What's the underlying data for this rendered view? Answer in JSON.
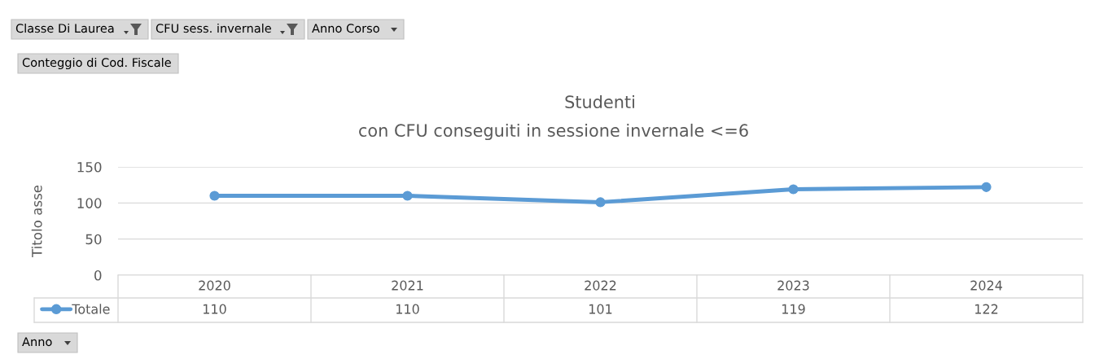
{
  "chart_data": {
    "type": "line",
    "title": "Studenti",
    "subtitle": "con CFU conseguiti in sessione invernale <=6",
    "ylabel": "Titolo asse",
    "categories": [
      "2020",
      "2021",
      "2022",
      "2023",
      "2024"
    ],
    "series": [
      {
        "name": "Totale",
        "color": "#5b9bd5",
        "values": [
          110,
          110,
          101,
          119,
          122
        ]
      }
    ],
    "ylim": [
      0,
      150
    ],
    "yticks": [
      0,
      50,
      100,
      150
    ],
    "grid": "y",
    "marker": "circle",
    "line_style": "solid",
    "data_labels": true,
    "legend": "bottom left",
    "annotations": [
      "Classe Di Laurea",
      "CFU sess. invernale",
      "Anno Corso",
      "Conteggio di Cod. Fiscale",
      "Anno"
    ]
  }
}
